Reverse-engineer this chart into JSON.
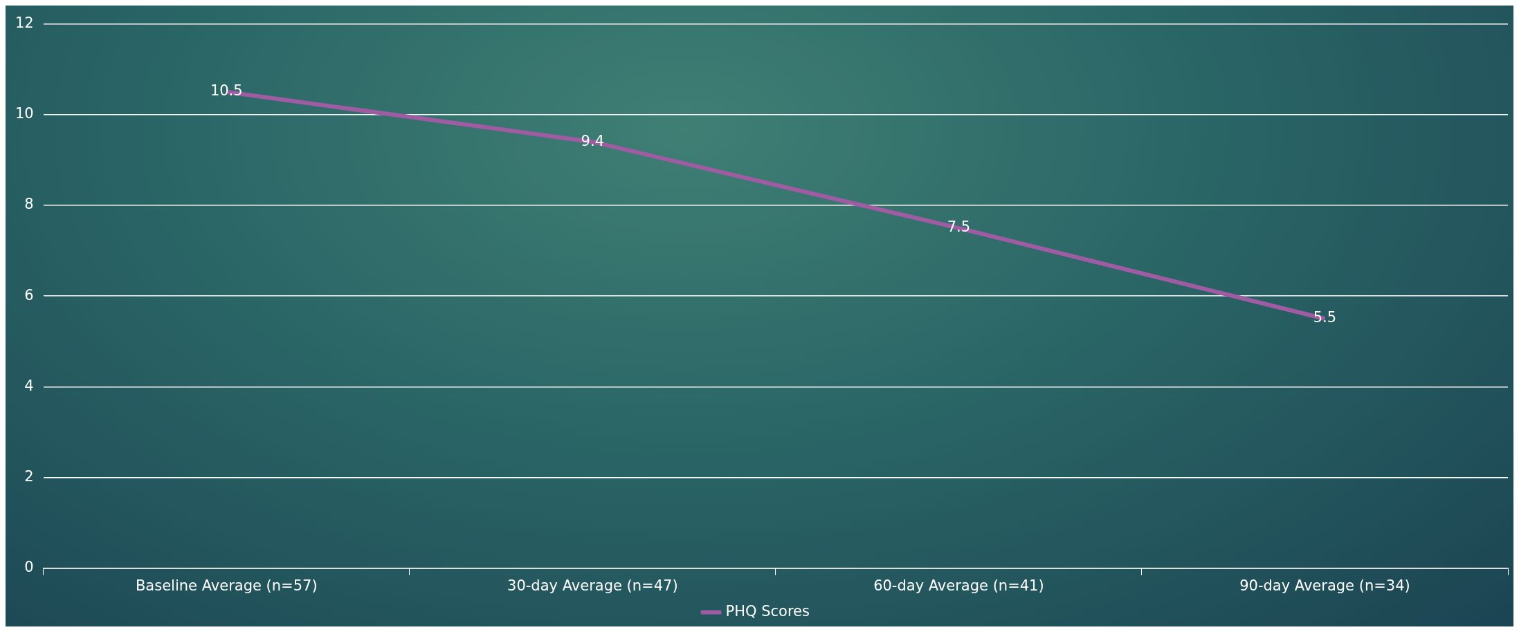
{
  "chart_data": {
    "type": "line",
    "categories": [
      "Baseline Average (n=57)",
      "30-day Average (n=47)",
      "60-day Average (n=41)",
      "90-day Average (n=34)"
    ],
    "series": [
      {
        "name": "PHQ Scores",
        "color": "#a05ca3",
        "values": [
          10.5,
          9.4,
          7.5,
          5.5
        ]
      }
    ],
    "ylim": [
      0,
      12
    ],
    "yticks": [
      0,
      2,
      4,
      6,
      8,
      10,
      12
    ],
    "grid": "y",
    "legend": "bottom",
    "data_labels": true,
    "marker": "none"
  }
}
